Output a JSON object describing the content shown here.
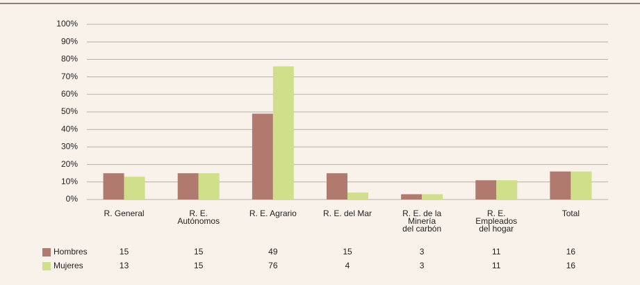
{
  "chart_data": {
    "type": "bar",
    "categories": [
      "R. General",
      "R. E.\nAutónomos",
      "R. E. Agrario",
      "R. E. del Mar",
      "R. E. de la\nMinería\ndel carbón",
      "R. E.\nEmpleados\ndel hogar",
      "Total"
    ],
    "series": [
      {
        "name": "Hombres",
        "color": "#b07a6e",
        "values": [
          15,
          15,
          49,
          15,
          3,
          11,
          16
        ]
      },
      {
        "name": "Mujeres",
        "color": "#cfdf8a",
        "values": [
          13,
          15,
          76,
          4,
          3,
          11,
          16
        ]
      }
    ],
    "ylim": [
      0,
      100
    ],
    "yticks": [
      {
        "value": 0,
        "label": "0%"
      },
      {
        "value": 10,
        "label": "10%"
      },
      {
        "value": 20,
        "label": "20%"
      },
      {
        "value": 30,
        "label": "30%"
      },
      {
        "value": 40,
        "label": "40%"
      },
      {
        "value": 50,
        "label": "50%"
      },
      {
        "value": 60,
        "label": "60%"
      },
      {
        "value": 70,
        "label": "70%"
      },
      {
        "value": 80,
        "label": "80%"
      },
      {
        "value": 90,
        "label": "90%"
      },
      {
        "value": 100,
        "label": "100%"
      }
    ],
    "grid": true
  }
}
